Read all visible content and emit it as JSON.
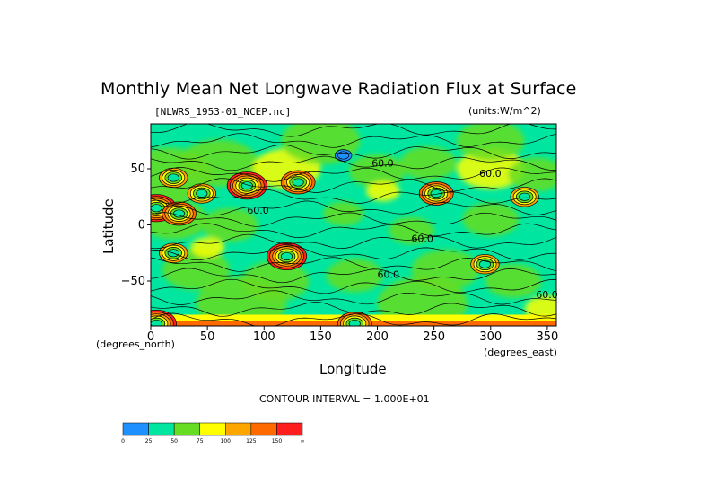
{
  "chart_data": {
    "type": "heatmap",
    "title": "Monthly Mean Net Longwave Radiation Flux at Surface",
    "source_label": "[NLWRS_1953-01_NCEP.nc]",
    "units_label": "(units:W/m^2)",
    "xlabel": "Longitude",
    "ylabel": "Latitude",
    "x_unit_note": "(degrees_east)",
    "y_unit_note": "(degrees_north)",
    "xlim": [
      0,
      358
    ],
    "ylim": [
      -90,
      90
    ],
    "xticks": [
      0,
      50,
      100,
      150,
      200,
      250,
      300,
      350
    ],
    "yticks": [
      -50,
      0,
      50
    ],
    "contour_interval_text": "CONTOUR INTERVAL = 1.000E+01",
    "contour_labels": [
      {
        "text": "60.0",
        "lon": 195,
        "lat": 52
      },
      {
        "text": "60.0",
        "lon": 290,
        "lat": 43
      },
      {
        "text": "60.0",
        "lon": 85,
        "lat": 10
      },
      {
        "text": "60.0",
        "lon": 230,
        "lat": -15
      },
      {
        "text": "60.0",
        "lon": 200,
        "lat": -47
      },
      {
        "text": "60.0",
        "lon": 340,
        "lat": -65
      }
    ],
    "features": [
      {
        "lon": 5,
        "lat": 15,
        "level": 150
      },
      {
        "lon": 25,
        "lat": 10,
        "level": 125
      },
      {
        "lon": 120,
        "lat": -28,
        "level": 150
      },
      {
        "lon": 252,
        "lat": 28,
        "level": 125
      },
      {
        "lon": 85,
        "lat": 35,
        "level": 150
      },
      {
        "lon": 130,
        "lat": 38,
        "level": 125
      },
      {
        "lon": 20,
        "lat": 42,
        "level": 100
      },
      {
        "lon": 295,
        "lat": -35,
        "level": 100
      },
      {
        "lon": 330,
        "lat": 25,
        "level": 100
      },
      {
        "lon": 20,
        "lat": -25,
        "level": 100
      },
      {
        "lon": 170,
        "lat": 62,
        "level": 0
      },
      {
        "lon": 45,
        "lat": 28,
        "level": 100
      },
      {
        "lon": 5,
        "lat": -88,
        "level": 150
      },
      {
        "lon": 180,
        "lat": -88,
        "level": 125
      }
    ],
    "colorbar": {
      "labels": [
        "0",
        "25",
        "50",
        "75",
        "100",
        "125",
        "150",
        "∞"
      ],
      "colors": [
        "#1e90ff",
        "#00e6a0",
        "#66dd22",
        "#ffff00",
        "#ffa500",
        "#ff6a00",
        "#ff1e1e"
      ]
    },
    "grid": false
  }
}
